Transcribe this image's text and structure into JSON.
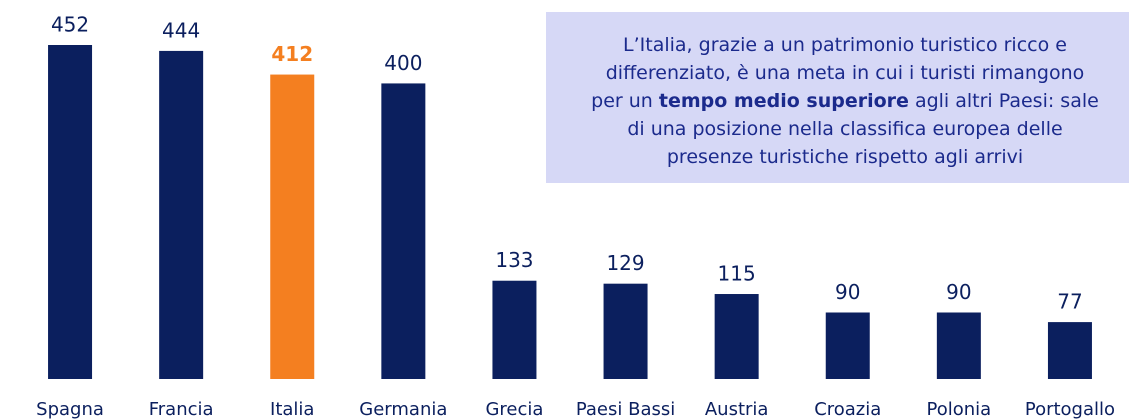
{
  "chart_data": {
    "type": "bar",
    "categories": [
      "Spagna",
      "Francia",
      "Italia",
      "Germania",
      "Grecia",
      "Paesi Bassi",
      "Austria",
      "Croazia",
      "Polonia",
      "Portogallo"
    ],
    "values": [
      452,
      444,
      412,
      400,
      133,
      129,
      115,
      90,
      90,
      77
    ],
    "colors": [
      "#0b1f5e",
      "#0b1f5e",
      "#f47f20",
      "#0b1f5e",
      "#0b1f5e",
      "#0b1f5e",
      "#0b1f5e",
      "#0b1f5e",
      "#0b1f5e",
      "#0b1f5e"
    ],
    "ylim": [
      0,
      452
    ],
    "annotation": {
      "lines": [
        [
          "L’Italia, grazie a un patrimonio turistico ricco e"
        ],
        [
          "differenziato, è una meta in cui i turisti rimangono"
        ],
        [
          "per un ",
          "tempo medio superiore",
          " agli altri Paesi: sale"
        ],
        [
          "di una posizione nella classifica europea delle"
        ],
        [
          "presenze turistiche rispetto agli arrivi"
        ]
      ]
    }
  }
}
